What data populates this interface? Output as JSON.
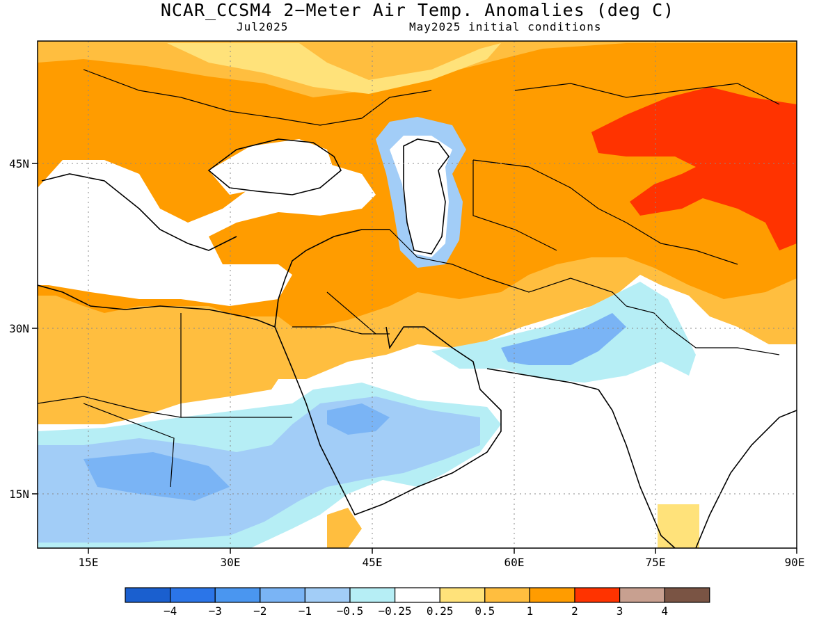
{
  "title": "NCAR_CCSM4 2−Meter Air Temp. Anomalies (deg C)",
  "valid_month": "Jul2025",
  "initial_conditions": "May2025 initial conditions",
  "axes": {
    "x_ticks": [
      "15E",
      "30E",
      "45E",
      "60E",
      "75E",
      "90E"
    ],
    "y_ticks": [
      "45N",
      "30N",
      "15N"
    ],
    "x_range_deg": [
      10,
      90
    ],
    "y_range_deg": [
      10,
      57
    ]
  },
  "legend": {
    "colors": [
      "#1a5fcf",
      "#2b75e8",
      "#4a96f0",
      "#7ab4f5",
      "#a2cdf7",
      "#b6eef5",
      "#ffffff",
      "#ffe27a",
      "#ffbe3f",
      "#ff9c00",
      "#ff3300",
      "#c8a090",
      "#7a5444"
    ],
    "labels": [
      "−4",
      "−3",
      "−2",
      "−1",
      "−0.5",
      "−0.25",
      "0.25",
      "0.5",
      "1",
      "2",
      "3",
      "4"
    ]
  }
}
